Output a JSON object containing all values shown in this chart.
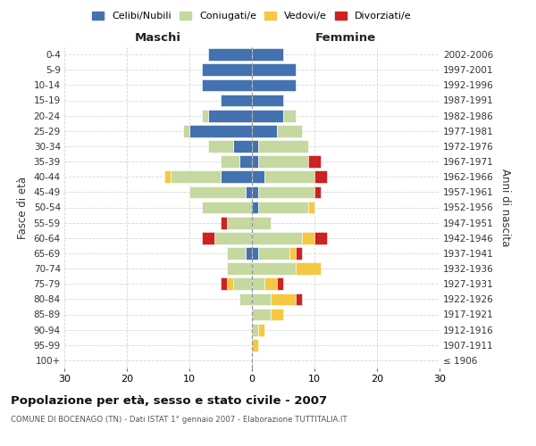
{
  "age_groups": [
    "100+",
    "95-99",
    "90-94",
    "85-89",
    "80-84",
    "75-79",
    "70-74",
    "65-69",
    "60-64",
    "55-59",
    "50-54",
    "45-49",
    "40-44",
    "35-39",
    "30-34",
    "25-29",
    "20-24",
    "15-19",
    "10-14",
    "5-9",
    "0-4"
  ],
  "birth_years": [
    "≤ 1906",
    "1907-1911",
    "1912-1916",
    "1917-1921",
    "1922-1926",
    "1927-1931",
    "1932-1936",
    "1937-1941",
    "1942-1946",
    "1947-1951",
    "1952-1956",
    "1957-1961",
    "1962-1966",
    "1967-1971",
    "1972-1976",
    "1977-1981",
    "1982-1986",
    "1987-1991",
    "1992-1996",
    "1997-2001",
    "2002-2006"
  ],
  "colors": {
    "celibi": "#4472b0",
    "coniugati": "#c5d8a0",
    "vedovi": "#f5c842",
    "divorziati": "#cc2222"
  },
  "maschi": {
    "celibi": [
      0,
      0,
      0,
      0,
      0,
      0,
      0,
      1,
      0,
      0,
      0,
      1,
      5,
      2,
      3,
      10,
      7,
      5,
      8,
      8,
      7
    ],
    "coniugati": [
      0,
      0,
      0,
      0,
      2,
      3,
      4,
      3,
      6,
      4,
      8,
      9,
      8,
      3,
      4,
      1,
      1,
      0,
      0,
      0,
      0
    ],
    "vedovi": [
      0,
      0,
      0,
      0,
      0,
      1,
      0,
      0,
      0,
      0,
      0,
      0,
      1,
      0,
      0,
      0,
      0,
      0,
      0,
      0,
      0
    ],
    "divorziati": [
      0,
      0,
      0,
      0,
      0,
      1,
      0,
      0,
      2,
      1,
      0,
      0,
      0,
      0,
      0,
      0,
      0,
      0,
      0,
      0,
      0
    ]
  },
  "femmine": {
    "celibi": [
      0,
      0,
      0,
      0,
      0,
      0,
      0,
      1,
      0,
      0,
      1,
      1,
      2,
      1,
      1,
      4,
      5,
      5,
      7,
      7,
      5
    ],
    "coniugati": [
      0,
      0,
      1,
      3,
      3,
      2,
      7,
      5,
      8,
      3,
      8,
      9,
      8,
      8,
      8,
      4,
      2,
      0,
      0,
      0,
      0
    ],
    "vedovi": [
      0,
      1,
      1,
      2,
      4,
      2,
      4,
      1,
      2,
      0,
      1,
      0,
      0,
      0,
      0,
      0,
      0,
      0,
      0,
      0,
      0
    ],
    "divorziati": [
      0,
      0,
      0,
      0,
      1,
      1,
      0,
      1,
      2,
      0,
      0,
      1,
      2,
      2,
      0,
      0,
      0,
      0,
      0,
      0,
      0
    ]
  },
  "xlim": 30,
  "title": "Popolazione per età, sesso e stato civile - 2007",
  "subtitle": "COMUNE DI BOCENAGO (TN) - Dati ISTAT 1° gennaio 2007 - Elaborazione TUTTITALIA.IT",
  "label_maschi": "Maschi",
  "label_femmine": "Femmine",
  "ylabel_left": "Fasce di età",
  "ylabel_right": "Anni di nascita",
  "legend_labels": [
    "Celibi/Nubili",
    "Coniugati/e",
    "Vedovi/e",
    "Divorziati/e"
  ],
  "bg_color": "#ffffff",
  "grid_color": "#cccccc"
}
